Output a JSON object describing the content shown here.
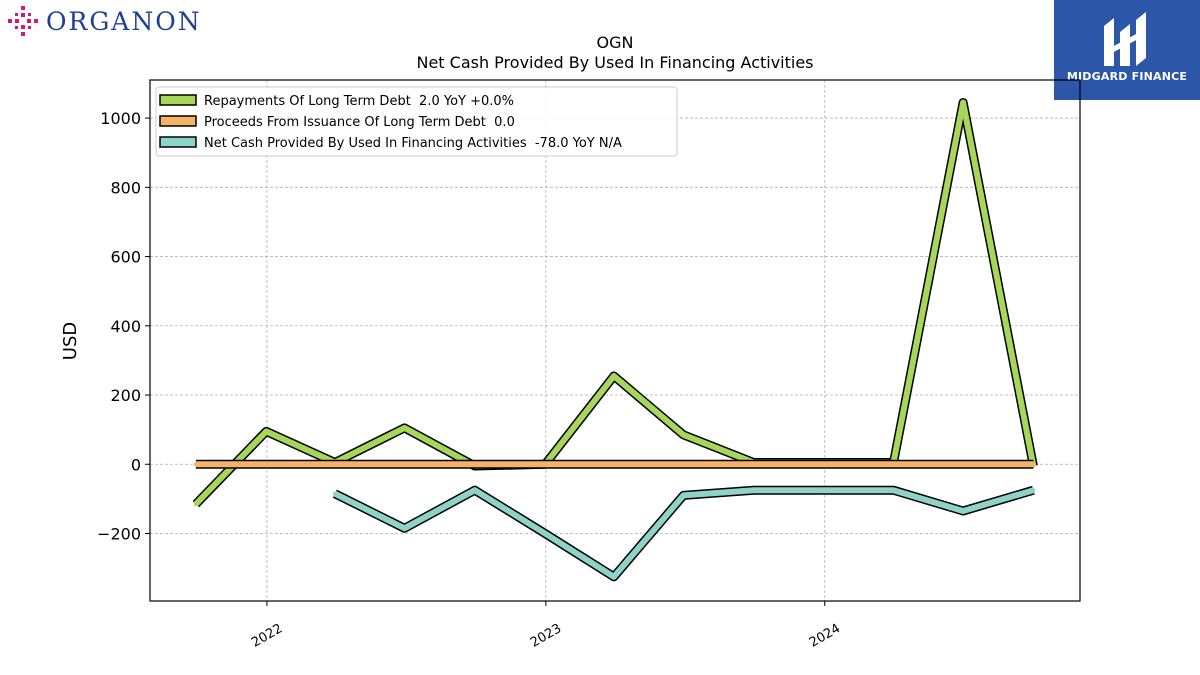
{
  "branding": {
    "left_logo_text": "ORGANON",
    "left_logo_color": "#1f3f95",
    "left_logo_mark_color": "#d4187a",
    "right_logo_text": "MIDGARD FINANCE",
    "right_logo_bg": "#2c56a8"
  },
  "chart_data": {
    "type": "line",
    "title": "OGN",
    "subtitle": "Net Cash Provided By Used In Financing Activities",
    "ylabel": "USD",
    "xlabel": "",
    "xlim": [
      "2021-08-01",
      "2024-11-30"
    ],
    "ylim": [
      -395,
      1110
    ],
    "yticks": [
      -200,
      0,
      200,
      400,
      600,
      800,
      1000
    ],
    "ytick_labels": [
      "−200",
      "0",
      "200",
      "400",
      "600",
      "800",
      "1000"
    ],
    "xticks": [
      "2022-01-01",
      "2023-01-01",
      "2024-01-01"
    ],
    "xtick_labels": [
      "2022",
      "2023",
      "2024"
    ],
    "grid": true,
    "legend_position": "top-left",
    "series": [
      {
        "name": "Repayments Of Long Term Debt",
        "legend_label": "Repayments Of Long Term Debt  2.0 YoY +0.0%",
        "color": "#a6d75b",
        "x": [
          "2021-09-30",
          "2021-12-31",
          "2022-03-31",
          "2022-06-30",
          "2022-09-30",
          "2022-12-31",
          "2023-03-31",
          "2023-06-30",
          "2023-09-30",
          "2023-12-31",
          "2024-03-31",
          "2024-06-30",
          "2024-09-30"
        ],
        "values": [
          -115,
          95,
          5,
          105,
          -5,
          0,
          255,
          85,
          5,
          5,
          5,
          1045,
          -5
        ]
      },
      {
        "name": "Proceeds From Issuance Of Long Term Debt",
        "legend_label": "Proceeds From Issuance Of Long Term Debt  0.0",
        "color": "#f7b26a",
        "x": [
          "2021-09-30",
          "2024-09-30"
        ],
        "values": [
          0,
          0
        ]
      },
      {
        "name": "Net Cash Provided By Used In Financing Activities",
        "legend_label": "Net Cash Provided By Used In Financing Activities  -78.0 YoY N/A",
        "color": "#8dd3c7",
        "x": [
          "2022-03-31",
          "2022-06-30",
          "2022-09-30",
          "2022-12-31",
          "2023-03-31",
          "2023-06-30",
          "2023-09-30",
          "2023-12-31",
          "2024-03-31",
          "2024-06-30",
          "2024-09-30"
        ],
        "values": [
          -85,
          -185,
          -75,
          -200,
          -325,
          -90,
          -75,
          -75,
          -75,
          -135,
          -75
        ]
      }
    ]
  }
}
